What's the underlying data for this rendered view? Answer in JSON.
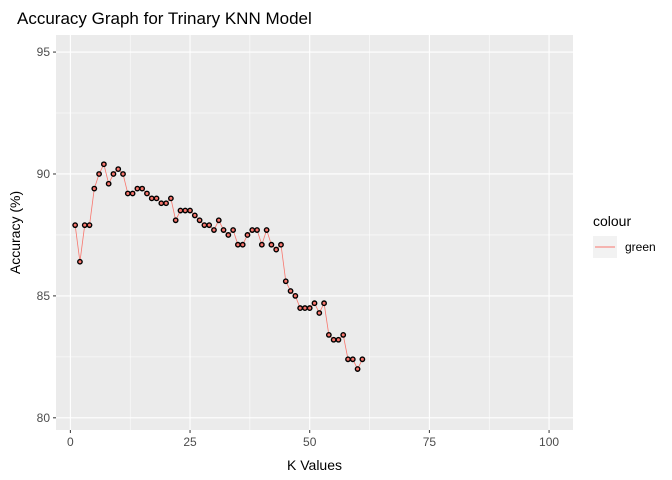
{
  "chart_data": {
    "type": "line",
    "title": "Accuracy Graph for Trinary KNN Model",
    "xlabel": "K Values",
    "ylabel": "Accuracy (%)",
    "xlim": [
      -3,
      105
    ],
    "ylim": [
      79.5,
      95.7
    ],
    "xticks": [
      0,
      25,
      50,
      75,
      100
    ],
    "yticks": [
      80,
      85,
      90,
      95
    ],
    "grid": true,
    "legend": {
      "title": "colour",
      "placement": "right",
      "entries": [
        {
          "label": "green",
          "color": "#F8766D"
        }
      ]
    },
    "series": [
      {
        "color": "#F8766D",
        "point_color": "#000000",
        "x": [
          1,
          2,
          3,
          4,
          5,
          6,
          7,
          8,
          9,
          10,
          11,
          12,
          13,
          14,
          15,
          16,
          17,
          18,
          19,
          20,
          21,
          22,
          23,
          24,
          25,
          26,
          27,
          28,
          29,
          30,
          31,
          32,
          33,
          34,
          35,
          36,
          37,
          38,
          39,
          40,
          41,
          42,
          43,
          44,
          45,
          46,
          47,
          48,
          49,
          50,
          51,
          52,
          53,
          54,
          55,
          56,
          57,
          58,
          59,
          60,
          61
        ],
        "y": [
          87.9,
          86.4,
          87.9,
          87.9,
          89.4,
          90.0,
          90.4,
          89.6,
          90.0,
          90.2,
          90.0,
          89.2,
          89.2,
          89.4,
          89.4,
          89.2,
          89.0,
          89.0,
          88.8,
          88.8,
          89.0,
          88.1,
          88.5,
          88.5,
          88.5,
          88.3,
          88.1,
          87.9,
          87.9,
          87.7,
          88.1,
          87.7,
          87.5,
          87.7,
          87.1,
          87.1,
          87.5,
          87.7,
          87.7,
          87.1,
          87.7,
          87.1,
          86.9,
          87.1,
          85.6,
          85.2,
          85.0,
          84.5,
          84.5,
          84.5,
          84.7,
          84.3,
          84.7,
          83.4,
          83.2,
          83.2,
          83.4,
          82.4,
          82.4,
          82.0,
          82.4
        ]
      }
    ]
  },
  "colors": {
    "panel_background": "#EBEBEB",
    "grid_line": "#FFFFFF"
  }
}
